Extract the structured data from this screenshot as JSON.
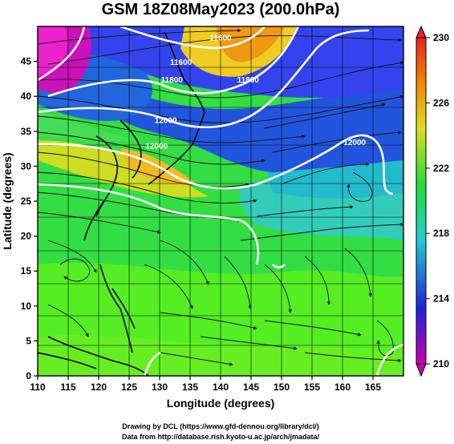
{
  "title": "GSM 18Z08May2023 (200.0hPa)",
  "x_axis": {
    "label": "Longitude (degrees)",
    "range": [
      110,
      170
    ],
    "ticks": [
      110,
      115,
      120,
      125,
      130,
      135,
      140,
      145,
      150,
      155,
      160,
      165
    ]
  },
  "y_axis": {
    "label": "Latitude  (degrees)",
    "range": [
      0,
      50
    ],
    "ticks": [
      0,
      5,
      10,
      15,
      20,
      25,
      30,
      35,
      40,
      45
    ]
  },
  "colorbar": {
    "range": [
      210,
      230
    ],
    "tick_labels": [
      "230",
      "226",
      "222",
      "218",
      "214",
      "210"
    ],
    "colors": [
      "#cc00aa",
      "#2222dd",
      "#22cccc",
      "#22dd33",
      "#dddd22",
      "#ee8800",
      "#ee2222"
    ]
  },
  "contour_labels": [
    {
      "text": "11800",
      "lon": 132,
      "lat": 42
    },
    {
      "text": "11600",
      "lon": 133.5,
      "lat": 44.5
    },
    {
      "text": "11800",
      "lon": 144.5,
      "lat": 42
    },
    {
      "text": "12000",
      "lon": 131,
      "lat": 36.2
    },
    {
      "text": "12000",
      "lon": 129.5,
      "lat": 32.5
    },
    {
      "text": "12000",
      "lon": 162,
      "lat": 33
    },
    {
      "text": "11600",
      "lon": 140,
      "lat": 48
    }
  ],
  "credits": [
    "Drawing by DCL (https://www.gfd-dennou.org/library/dcl/)",
    "Data from http://database.rish.kyoto-u.ac.jp/arch/jmadata/"
  ]
}
